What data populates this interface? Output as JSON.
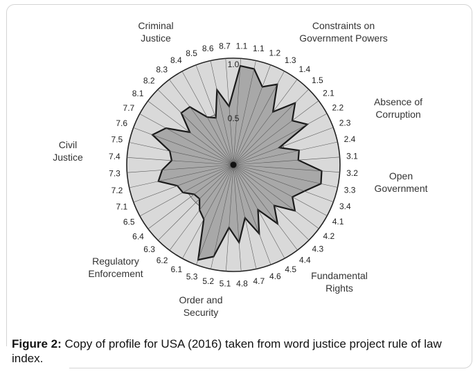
{
  "chart_data": {
    "type": "radar",
    "center_value": 0,
    "max_value": 1.0,
    "scale_labels": [
      "0.5",
      "1.0"
    ],
    "pillars": [
      {
        "label": [
          "Criminal",
          "Justice"
        ],
        "indices": [
          "8.1",
          "8.2",
          "8.3",
          "8.4",
          "8.5",
          "8.6",
          "8.7"
        ]
      },
      {
        "label": [
          "Constraints on",
          "Government Powers"
        ],
        "indices": [
          "1.1",
          "1.1",
          "1.2",
          "1.3",
          "1.4",
          "1.5"
        ]
      },
      {
        "label": [
          "Absence of",
          "Corruption"
        ],
        "indices": [
          "2.1",
          "2.2",
          "2.3",
          "2.4"
        ]
      },
      {
        "label": [
          "Open",
          "Government"
        ],
        "indices": [
          "3.1",
          "3.2",
          "3.3",
          "3.4"
        ]
      },
      {
        "label": [
          "Fundamental",
          "Rights"
        ],
        "indices": [
          "4.1",
          "4.2",
          "4.3",
          "4.4",
          "4.5",
          "4.6",
          "4.7",
          "4.8"
        ]
      },
      {
        "label": [
          "Order and",
          "Security"
        ],
        "indices": [
          "5.1",
          "5.2",
          "5.3"
        ]
      },
      {
        "label": [
          "Regulatory",
          "Enforcement"
        ],
        "indices": [
          "6.1",
          "6.2",
          "6.3",
          "6.4",
          "6.5"
        ]
      },
      {
        "label": [
          "Civil",
          "Justice"
        ],
        "indices": [
          "7.1",
          "7.2",
          "7.3",
          "7.4",
          "7.5",
          "7.6",
          "7.7"
        ]
      }
    ],
    "tick_order": [
      "1.1",
      "1.1",
      "1.2",
      "1.3",
      "1.4",
      "1.5",
      "2.1",
      "2.2",
      "2.3",
      "2.4",
      "3.1",
      "3.2",
      "3.3",
      "3.4",
      "4.1",
      "4.2",
      "4.3",
      "4.4",
      "4.5",
      "4.6",
      "4.7",
      "4.8",
      "5.1",
      "5.2",
      "5.3",
      "6.1",
      "6.2",
      "6.3",
      "6.4",
      "6.5",
      "7.1",
      "7.2",
      "7.3",
      "7.4",
      "7.5",
      "7.6",
      "7.7",
      "8.1",
      "8.2",
      "8.3",
      "8.4",
      "8.5",
      "8.6",
      "8.7"
    ],
    "values": [
      0.93,
      0.92,
      0.78,
      0.86,
      0.62,
      0.82,
      0.69,
      0.79,
      0.46,
      0.63,
      0.61,
      0.83,
      0.84,
      0.71,
      0.63,
      0.72,
      0.54,
      0.69,
      0.48,
      0.69,
      0.51,
      0.73,
      0.59,
      0.88,
      0.95,
      0.58,
      0.53,
      0.45,
      0.46,
      0.54,
      0.56,
      0.72,
      0.67,
      0.58,
      0.61,
      0.81,
      0.72,
      0.51,
      0.69,
      0.68,
      0.51,
      0.47,
      0.72,
      0.55
    ],
    "colors": {
      "outer_ring": "#d9d9d9",
      "inner_disc": "#bfbfbf",
      "profile_fill": "#a8a8a8",
      "profile_stroke": "#1a1a1a",
      "spoke": "#555555"
    }
  },
  "caption": {
    "label": "Figure 2:",
    "text": " Copy of profile for USA (2016) taken from word justice project rule of law index."
  }
}
